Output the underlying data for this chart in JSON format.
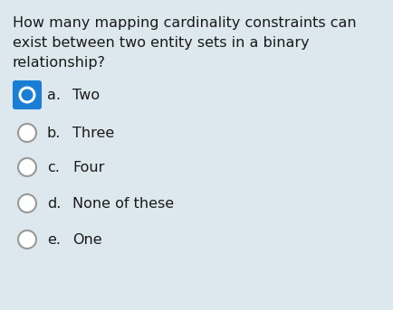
{
  "background_color": "#dce8ed",
  "question_lines": [
    "How many mapping cardinality constraints can",
    "exist between two entity sets in a binary",
    "relationship?"
  ],
  "question_fontsize": 11.5,
  "question_color": "#1a1a1a",
  "options": [
    {
      "label": "a.",
      "text": "Two",
      "selected": true
    },
    {
      "label": "b.",
      "text": "Three",
      "selected": false
    },
    {
      "label": "c.",
      "text": "Four",
      "selected": false
    },
    {
      "label": "d.",
      "text": "None of these",
      "selected": false
    },
    {
      "label": "e.",
      "text": "One",
      "selected": false
    }
  ],
  "option_fontsize": 11.5,
  "option_color": "#1a1a1a",
  "selected_fill": "#1a7fd4",
  "selected_box_color": "#1a7fd4",
  "unselected_border": "#999999"
}
